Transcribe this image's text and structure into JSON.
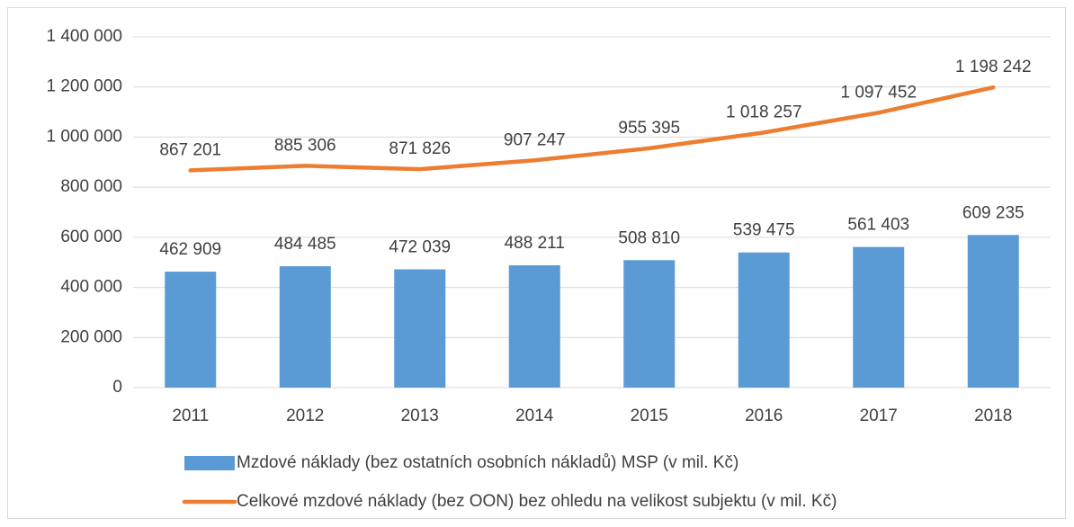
{
  "chart_data": {
    "type": "combo",
    "categories": [
      "2011",
      "2012",
      "2013",
      "2014",
      "2015",
      "2016",
      "2017",
      "2018"
    ],
    "series": [
      {
        "name": "Mzdové náklady (bez ostatních osobních nákladů) MSP (v mil. Kč)",
        "type": "bar",
        "color": "#5b9bd5",
        "values": [
          462909,
          484485,
          472039,
          488211,
          508810,
          539475,
          561403,
          609235
        ],
        "value_labels": [
          "462 909",
          "484 485",
          "472 039",
          "488 211",
          "508 810",
          "539 475",
          "561 403",
          "609 235"
        ]
      },
      {
        "name": "Celkové mzdové náklady (bez OON) bez ohledu na velikost subjektu (v mil. Kč)",
        "type": "line",
        "color": "#ed7d31",
        "values": [
          867201,
          885306,
          871826,
          907247,
          955395,
          1018257,
          1097452,
          1198242
        ],
        "value_labels": [
          "867 201",
          "885 306",
          "871 826",
          "907 247",
          "955 395",
          "1 018 257",
          "1 097 452",
          "1 198 242"
        ]
      }
    ],
    "ylim": [
      0,
      1400000
    ],
    "yticks": [
      0,
      {
        "value": 200000,
        "label": "200 000"
      },
      {
        "value": 400000,
        "label": "400 000"
      },
      {
        "value": 600000,
        "label": "600 000"
      },
      {
        "value": 800000,
        "label": "800 000"
      },
      {
        "value": 1000000,
        "label": "1 000 000"
      },
      {
        "value": 1200000,
        "label": "1 200 000"
      },
      {
        "value": 1400000,
        "label": "1 400 000"
      }
    ],
    "grid": true,
    "legend": "bottom"
  }
}
